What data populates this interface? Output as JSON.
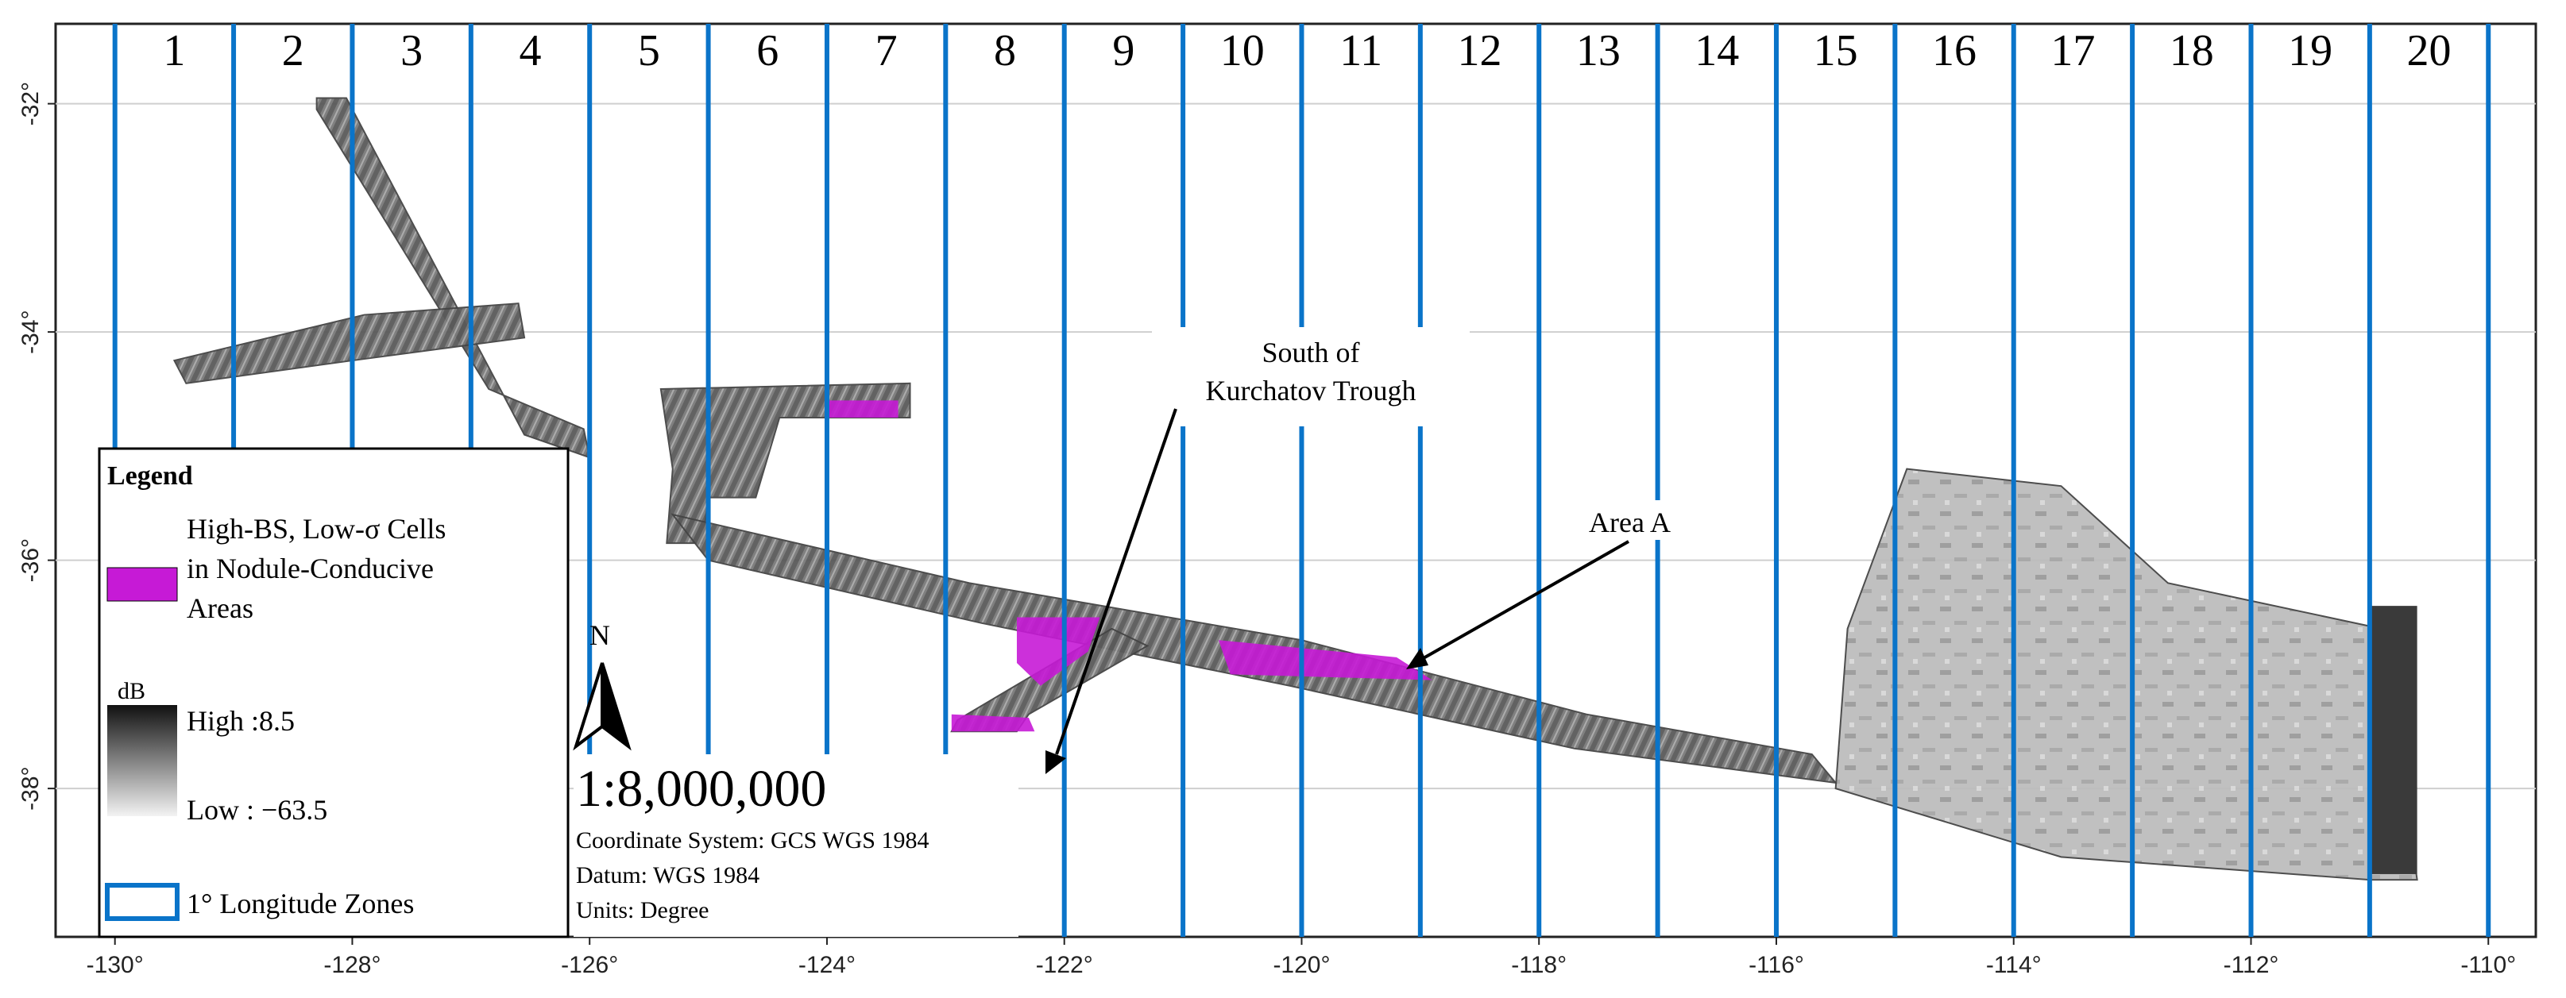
{
  "map": {
    "x_axis": {
      "ticks": [
        "-130°",
        "-128°",
        "-126°",
        "-124°",
        "-122°",
        "-120°",
        "-118°",
        "-116°",
        "-114°",
        "-112°",
        "-110°"
      ],
      "range": [
        -130.5,
        -109.6
      ]
    },
    "y_axis": {
      "ticks": [
        "-32°",
        "-34°",
        "-36°",
        "-38°"
      ],
      "range": [
        -31.3,
        -39.3
      ]
    },
    "grid": true,
    "zones": {
      "labels": [
        "1",
        "2",
        "3",
        "4",
        "5",
        "6",
        "7",
        "8",
        "9",
        "10",
        "11",
        "12",
        "13",
        "14",
        "15",
        "16",
        "17",
        "18",
        "19",
        "20"
      ],
      "boundaries_lon": [
        -130,
        -129,
        -128,
        -127,
        -126,
        -125,
        -124,
        -123,
        -122,
        -121,
        -120,
        -119,
        -118,
        -117,
        -116,
        -115,
        -114,
        -113,
        -112,
        -111,
        -110
      ],
      "line_color": "#0a74c9"
    },
    "annotations": {
      "south_kurchatov": [
        "South of",
        "Kurchatov Trough"
      ],
      "area_a": "Area A"
    },
    "north_arrow": {
      "label": "N"
    },
    "scale": "1:8,000,000",
    "coordinate_info": [
      "Coordinate System: GCS WGS 1984",
      "Datum: WGS 1984",
      "Units: Degree"
    ],
    "legend": {
      "title": "Legend",
      "highlight_label": [
        "High-BS, Low-σ Cells",
        "in Nodule-Conducive",
        "Areas"
      ],
      "highlight_color": "#c61ad6",
      "ramp_unit": "dB",
      "ramp_high": "High :8.5",
      "ramp_low": "Low : −63.5",
      "zones_label": "1° Longitude Zones"
    }
  }
}
